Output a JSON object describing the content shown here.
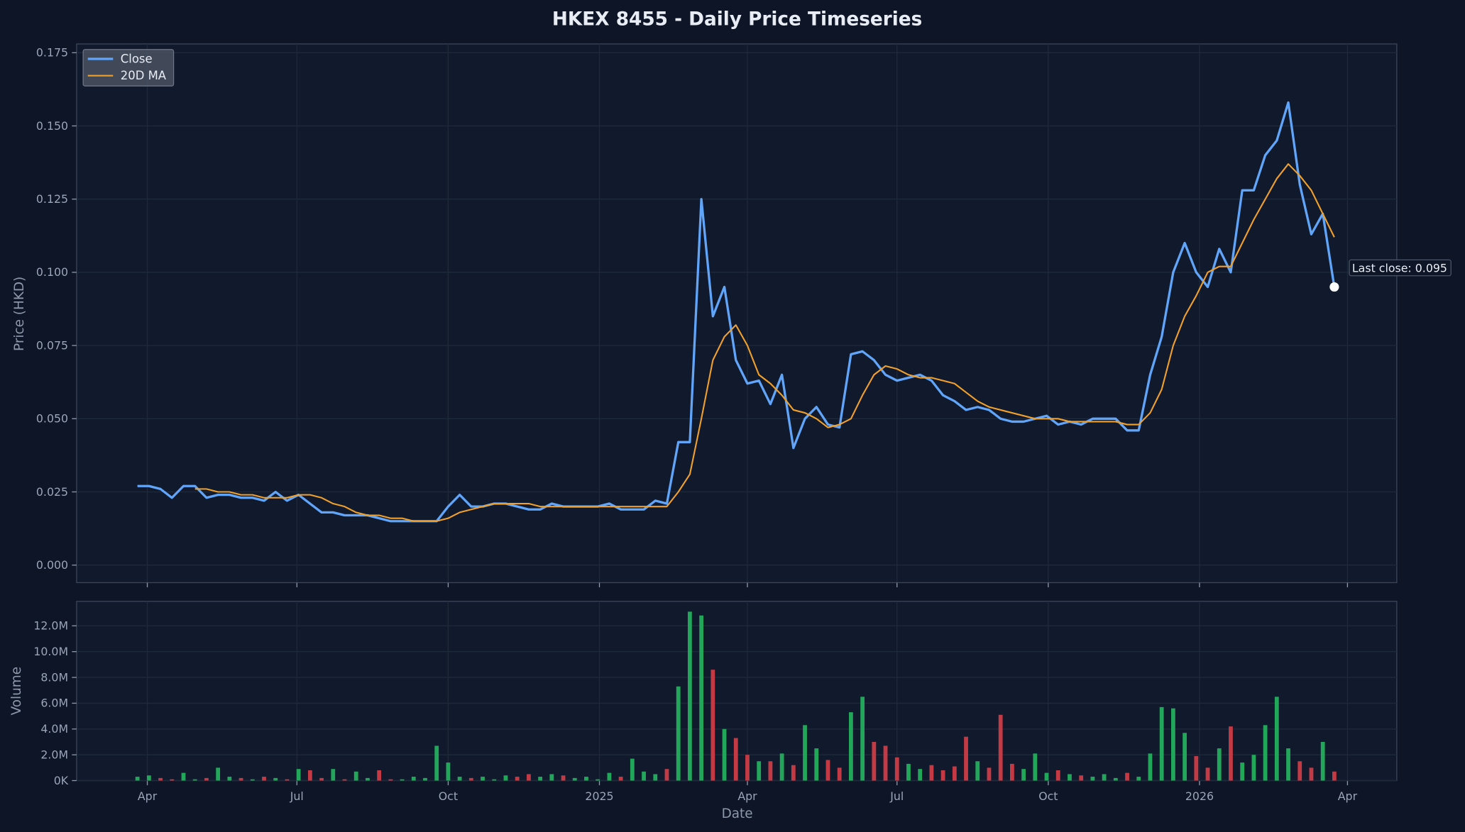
{
  "chart_data": {
    "type": "line",
    "title": "HKEX 8455 - Daily Price Timeseries",
    "ylabel": "Price (HKD)",
    "xlabel": "Date",
    "annotation": "Last close: 0.095",
    "grid": true,
    "legend": "upper left",
    "xlim": [
      "2024-02-18",
      "2026-05-01"
    ],
    "xticks": [
      {
        "value": "2024-04-01",
        "label": "Apr"
      },
      {
        "value": "2024-07-01",
        "label": "Jul"
      },
      {
        "value": "2024-10-01",
        "label": "Oct"
      },
      {
        "value": "2025-01-01",
        "label": "2025"
      },
      {
        "value": "2025-04-01",
        "label": "Apr"
      },
      {
        "value": "2025-07-01",
        "label": "Jul"
      },
      {
        "value": "2025-10-01",
        "label": "Oct"
      },
      {
        "value": "2026-01-01",
        "label": "2026"
      },
      {
        "value": "2026-04-01",
        "label": "Apr"
      }
    ],
    "ylim": [
      -0.006,
      0.178
    ],
    "yticks": [
      {
        "value": 0,
        "label": "0.000"
      },
      0.025,
      {
        "value": 0.05,
        "label": "0.050"
      },
      0.075,
      {
        "value": 0.1,
        "label": "0.100"
      },
      0.125,
      {
        "value": 0.15,
        "label": "0.150"
      },
      0.175
    ],
    "x": [
      "2024-03-26",
      "2024-04-02",
      "2024-04-09",
      "2024-04-16",
      "2024-04-23",
      "2024-04-30",
      "2024-05-07",
      "2024-05-14",
      "2024-05-21",
      "2024-05-28",
      "2024-06-04",
      "2024-06-11",
      "2024-06-18",
      "2024-06-25",
      "2024-07-02",
      "2024-07-09",
      "2024-07-16",
      "2024-07-23",
      "2024-07-30",
      "2024-08-06",
      "2024-08-13",
      "2024-08-20",
      "2024-08-27",
      "2024-09-03",
      "2024-09-10",
      "2024-09-17",
      "2024-09-24",
      "2024-10-01",
      "2024-10-08",
      "2024-10-15",
      "2024-10-22",
      "2024-10-29",
      "2024-11-05",
      "2024-11-12",
      "2024-11-19",
      "2024-11-26",
      "2024-12-03",
      "2024-12-10",
      "2024-12-17",
      "2024-12-24",
      "2024-12-31",
      "2025-01-07",
      "2025-01-14",
      "2025-01-21",
      "2025-01-28",
      "2025-02-04",
      "2025-02-11",
      "2025-02-18",
      "2025-02-25",
      "2025-03-04",
      "2025-03-11",
      "2025-03-18",
      "2025-03-25",
      "2025-04-01",
      "2025-04-08",
      "2025-04-15",
      "2025-04-22",
      "2025-04-29",
      "2025-05-06",
      "2025-05-13",
      "2025-05-20",
      "2025-05-27",
      "2025-06-03",
      "2025-06-10",
      "2025-06-17",
      "2025-06-24",
      "2025-07-01",
      "2025-07-08",
      "2025-07-15",
      "2025-07-22",
      "2025-07-29",
      "2025-08-05",
      "2025-08-12",
      "2025-08-19",
      "2025-08-26",
      "2025-09-02",
      "2025-09-09",
      "2025-09-16",
      "2025-09-23",
      "2025-09-30",
      "2025-10-07",
      "2025-10-14",
      "2025-10-21",
      "2025-10-28",
      "2025-11-04",
      "2025-11-11",
      "2025-11-18",
      "2025-11-25",
      "2025-12-02",
      "2025-12-09",
      "2025-12-16",
      "2025-12-23",
      "2025-12-30",
      "2026-01-06",
      "2026-01-13",
      "2026-01-20",
      "2026-01-27",
      "2026-02-03",
      "2026-02-10",
      "2026-02-17",
      "2026-02-24",
      "2026-03-03",
      "2026-03-10",
      "2026-03-17",
      "2026-03-24"
    ],
    "series": [
      {
        "name": "Close",
        "color": "#60a5fa",
        "width": 2.5,
        "values": [
          0.027,
          0.027,
          0.026,
          0.023,
          0.027,
          0.027,
          0.023,
          0.024,
          0.024,
          0.023,
          0.023,
          0.022,
          0.025,
          0.022,
          0.024,
          0.021,
          0.018,
          0.018,
          0.017,
          0.017,
          0.017,
          0.016,
          0.015,
          0.015,
          0.015,
          0.015,
          0.015,
          0.02,
          0.024,
          0.02,
          0.02,
          0.021,
          0.021,
          0.02,
          0.019,
          0.019,
          0.021,
          0.02,
          0.02,
          0.02,
          0.02,
          0.021,
          0.019,
          0.019,
          0.019,
          0.022,
          0.021,
          0.042,
          0.042,
          0.125,
          0.085,
          0.095,
          0.07,
          0.062,
          0.063,
          0.055,
          0.065,
          0.04,
          0.05,
          0.054,
          0.048,
          0.047,
          0.072,
          0.073,
          0.07,
          0.065,
          0.063,
          0.064,
          0.065,
          0.063,
          0.058,
          0.056,
          0.053,
          0.054,
          0.053,
          0.05,
          0.049,
          0.049,
          0.05,
          0.051,
          0.048,
          0.049,
          0.048,
          0.05,
          0.05,
          0.05,
          0.046,
          0.046,
          0.065,
          0.078,
          0.1,
          0.11,
          0.1,
          0.095,
          0.108,
          0.1,
          0.128,
          0.128,
          0.14,
          0.145,
          0.158,
          0.13,
          0.113,
          0.12,
          0.095
        ]
      },
      {
        "name": "20D MA",
        "color": "#f0a02a",
        "width": 1.6,
        "values": [
          null,
          null,
          null,
          null,
          null,
          0.026,
          0.026,
          0.025,
          0.025,
          0.024,
          0.024,
          0.023,
          0.023,
          0.023,
          0.024,
          0.024,
          0.023,
          0.021,
          0.02,
          0.018,
          0.017,
          0.017,
          0.016,
          0.016,
          0.015,
          0.015,
          0.015,
          0.016,
          0.018,
          0.019,
          0.02,
          0.021,
          0.021,
          0.021,
          0.021,
          0.02,
          0.02,
          0.02,
          0.02,
          0.02,
          0.02,
          0.02,
          0.02,
          0.02,
          0.02,
          0.02,
          0.02,
          0.025,
          0.031,
          0.05,
          0.07,
          0.078,
          0.082,
          0.075,
          0.065,
          0.062,
          0.058,
          0.053,
          0.052,
          0.05,
          0.047,
          0.048,
          0.05,
          0.058,
          0.065,
          0.068,
          0.067,
          0.065,
          0.064,
          0.064,
          0.063,
          0.062,
          0.059,
          0.056,
          0.054,
          0.053,
          0.052,
          0.051,
          0.05,
          0.05,
          0.05,
          0.049,
          0.049,
          0.049,
          0.049,
          0.049,
          0.048,
          0.048,
          0.052,
          0.06,
          0.075,
          0.085,
          0.092,
          0.1,
          0.102,
          0.102,
          0.11,
          0.118,
          0.125,
          0.132,
          0.137,
          0.133,
          0.128,
          0.12,
          0.112
        ]
      }
    ],
    "volume": {
      "ylabel": "Volume",
      "up_color": "#22a65a",
      "down_color": "#c43a44",
      "ylim": [
        0,
        13900000
      ],
      "yticks": [
        {
          "value": 0,
          "label": "0K"
        },
        {
          "value": 2000000,
          "label": "2.0M"
        },
        {
          "value": 4000000,
          "label": "4.0M"
        },
        {
          "value": 6000000,
          "label": "6.0M"
        },
        {
          "value": 8000000,
          "label": "8.0M"
        },
        {
          "value": 10000000,
          "label": "10.0M"
        },
        {
          "value": 12000000,
          "label": "12.0M"
        }
      ],
      "values": [
        300000,
        400000,
        200000,
        100000,
        600000,
        100000,
        200000,
        1000000,
        300000,
        200000,
        100000,
        300000,
        200000,
        100000,
        900000,
        800000,
        200000,
        900000,
        100000,
        700000,
        200000,
        800000,
        100000,
        100000,
        300000,
        200000,
        2700000,
        1400000,
        300000,
        200000,
        300000,
        100000,
        400000,
        300000,
        500000,
        300000,
        500000,
        400000,
        200000,
        300000,
        100000,
        600000,
        300000,
        1700000,
        700000,
        500000,
        900000,
        7300000,
        13100000,
        12800000,
        8600000,
        4000000,
        3300000,
        2000000,
        1500000,
        1500000,
        2100000,
        1200000,
        4300000,
        2500000,
        1600000,
        1000000,
        5300000,
        6500000,
        3000000,
        2700000,
        1800000,
        1300000,
        900000,
        1200000,
        800000,
        1100000,
        3400000,
        1500000,
        1000000,
        5100000,
        1300000,
        900000,
        2100000,
        600000,
        800000,
        500000,
        400000,
        300000,
        500000,
        200000,
        600000,
        300000,
        2100000,
        5700000,
        5600000,
        3700000,
        1900000,
        1000000,
        2500000,
        4200000,
        1400000,
        2000000,
        4300000,
        6500000,
        2500000,
        1500000,
        1000000,
        3000000,
        700000
      ]
    }
  }
}
